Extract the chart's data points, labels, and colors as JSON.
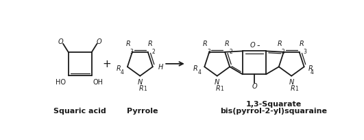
{
  "background_color": "#ffffff",
  "figure_width": 5.31,
  "figure_height": 2.05,
  "dpi": 100,
  "line_color": "#1a1a1a",
  "line_width": 1.3,
  "thin_lw": 0.9,
  "text_color": "#1a1a1a",
  "font_size": 7.0,
  "font_size_sub": 5.5,
  "font_size_bold": 8.0,
  "squaric_acid_label": "Squaric acid",
  "pyrrole_label": "Pyrrole",
  "product_label_line1": "1,3-Squarate",
  "product_label_line2": "bis(pyrrol-2-yl)squaraine"
}
